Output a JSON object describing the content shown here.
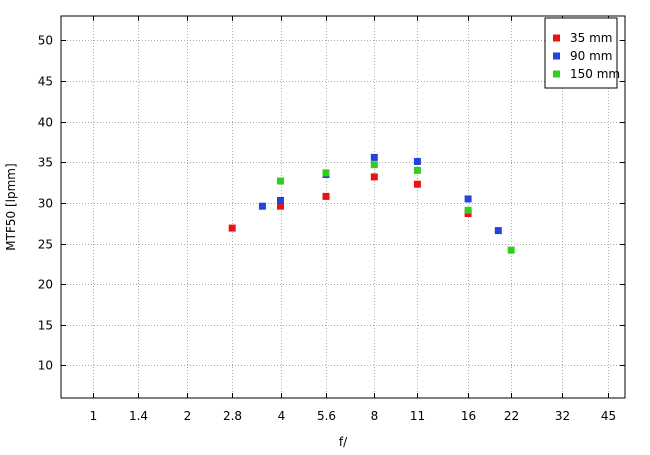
{
  "chart_data": {
    "type": "scatter",
    "title": "",
    "xlabel": "f/",
    "ylabel": "MTF50 [lpmm]",
    "x_scale": "log",
    "x_ticks": [
      "1",
      "1.4",
      "2",
      "2.8",
      "4",
      "5.6",
      "8",
      "11",
      "16",
      "22",
      "32",
      "45"
    ],
    "x_tick_values": [
      1,
      1.4,
      2,
      2.8,
      4,
      5.6,
      8,
      11,
      16,
      22,
      32,
      45
    ],
    "xlim": [
      0.79,
      51
    ],
    "ylim": [
      6,
      53
    ],
    "y_ticks": [
      10,
      15,
      20,
      25,
      30,
      35,
      40,
      45,
      50
    ],
    "grid": true,
    "legend_position": "top-right",
    "series": [
      {
        "name": "35 mm",
        "color": "#ee1111",
        "points": [
          {
            "x": 2.8,
            "y": 26.9
          },
          {
            "x": 4,
            "y": 29.6
          },
          {
            "x": 5.6,
            "y": 30.8
          },
          {
            "x": 8,
            "y": 33.2
          },
          {
            "x": 11,
            "y": 32.3
          },
          {
            "x": 16,
            "y": 28.7
          }
        ]
      },
      {
        "name": "90 mm",
        "color": "#2244dd",
        "points": [
          {
            "x": 3.5,
            "y": 29.6
          },
          {
            "x": 4,
            "y": 30.3
          },
          {
            "x": 5.6,
            "y": 33.5
          },
          {
            "x": 8,
            "y": 35.6
          },
          {
            "x": 11,
            "y": 35.1
          },
          {
            "x": 16,
            "y": 30.5
          },
          {
            "x": 20,
            "y": 26.6
          }
        ]
      },
      {
        "name": "150 mm",
        "color": "#33cc22",
        "points": [
          {
            "x": 4,
            "y": 32.7
          },
          {
            "x": 5.6,
            "y": 33.7
          },
          {
            "x": 8,
            "y": 34.7
          },
          {
            "x": 11,
            "y": 34.0
          },
          {
            "x": 16,
            "y": 29.1
          },
          {
            "x": 22,
            "y": 24.2
          }
        ]
      }
    ]
  }
}
